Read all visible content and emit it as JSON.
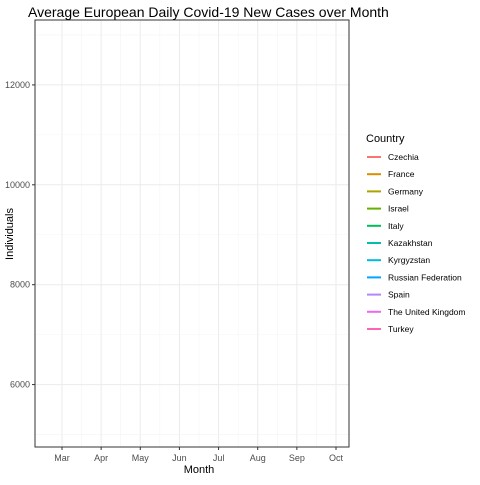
{
  "chart_data": {
    "type": "line",
    "title": "Average European Daily Covid-19 New Cases over Month",
    "xlabel": "Month",
    "ylabel": "Individuals",
    "x_categories": [
      "Mar",
      "Apr",
      "May",
      "Jun",
      "Jul",
      "Aug",
      "Sep",
      "Oct"
    ],
    "xlim": [
      "Mar",
      "Oct"
    ],
    "ylim": [
      4750,
      13300
    ],
    "y_ticks": [
      6000,
      8000,
      10000,
      12000
    ],
    "grid": true,
    "legend": {
      "title": "Country",
      "placement": "right"
    },
    "series": [
      {
        "name": "Czechia",
        "color": "#F8766D",
        "values": []
      },
      {
        "name": "France",
        "color": "#DB8E00",
        "values": []
      },
      {
        "name": "Germany",
        "color": "#AEA200",
        "values": []
      },
      {
        "name": "Israel",
        "color": "#64B200",
        "values": []
      },
      {
        "name": "Italy",
        "color": "#00BD5C",
        "values": []
      },
      {
        "name": "Kazakhstan",
        "color": "#00C1A7",
        "values": []
      },
      {
        "name": "Kyrgyzstan",
        "color": "#00BADE",
        "values": []
      },
      {
        "name": "Russian Federation",
        "color": "#00A6FF",
        "values": []
      },
      {
        "name": "Spain",
        "color": "#B385FF",
        "values": []
      },
      {
        "name": "The United Kingdom",
        "color": "#EF67EB",
        "values": []
      },
      {
        "name": "Turkey",
        "color": "#FF63B6",
        "values": []
      }
    ]
  }
}
